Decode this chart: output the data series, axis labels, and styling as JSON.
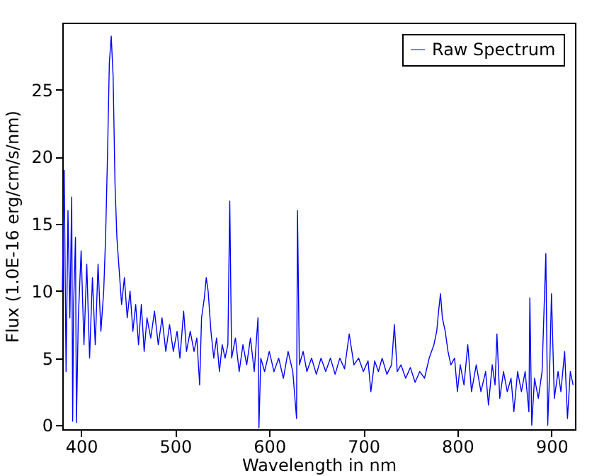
{
  "chart_data": {
    "type": "line",
    "xlabel": "Wavelength in nm",
    "ylabel": "Flux (1.0E-16 erg/cm/s/nm)",
    "x": [
      380,
      382,
      384,
      386,
      388,
      390,
      391,
      392,
      394,
      395,
      397,
      400,
      403,
      406,
      409,
      412,
      415,
      418,
      421,
      424,
      426,
      428,
      430,
      432,
      434,
      436,
      438,
      440,
      443,
      446,
      449,
      452,
      455,
      458,
      461,
      464,
      467,
      470,
      474,
      478,
      482,
      486,
      490,
      494,
      498,
      502,
      505,
      509,
      512,
      516,
      520,
      523,
      526,
      528,
      531,
      533,
      535,
      538,
      541,
      544,
      547,
      550,
      553,
      556,
      558,
      560,
      564,
      568,
      572,
      576,
      580,
      584,
      588,
      589,
      591,
      595,
      600,
      605,
      610,
      615,
      620,
      625,
      629,
      630,
      632,
      636,
      640,
      645,
      650,
      655,
      660,
      665,
      670,
      675,
      680,
      685,
      690,
      695,
      700,
      705,
      708,
      712,
      716,
      720,
      725,
      730,
      733,
      736,
      740,
      745,
      750,
      755,
      760,
      765,
      770,
      775,
      778,
      780,
      782,
      784,
      787,
      790,
      793,
      797,
      800,
      803,
      807,
      811,
      815,
      820,
      825,
      830,
      833,
      837,
      840,
      842,
      845,
      849,
      853,
      857,
      860,
      864,
      868,
      872,
      876,
      877,
      879,
      882,
      886,
      890,
      894,
      896,
      898,
      900,
      903,
      907,
      910,
      914,
      917,
      920,
      923
    ],
    "series": [
      {
        "name": "Raw Spectrum",
        "color": "#0000ff",
        "values": [
          10,
          19,
          4,
          16,
          8,
          17,
          0.3,
          9,
          14,
          0.2,
          8,
          13,
          6,
          12,
          5,
          11,
          6,
          12,
          7,
          10,
          14,
          20,
          27,
          29,
          26,
          18,
          14,
          12,
          9,
          11,
          8,
          10,
          7,
          9,
          6,
          9,
          5.5,
          8,
          6.5,
          8.5,
          6,
          8,
          5.5,
          7.5,
          5.5,
          7,
          5,
          8.5,
          5.5,
          7,
          5.5,
          6.5,
          3,
          8,
          9.5,
          11,
          10,
          7,
          5,
          6.5,
          4,
          6,
          5,
          6,
          16.7,
          5,
          6.5,
          4,
          6,
          4.5,
          6.5,
          4,
          8,
          -0.2,
          5,
          4,
          5.5,
          4,
          5,
          3.5,
          5.5,
          4,
          0.5,
          16,
          4.5,
          5.5,
          4,
          5,
          3.8,
          5,
          4,
          5,
          3.8,
          5,
          4.2,
          6.8,
          4.5,
          5,
          4,
          4.8,
          2.5,
          4.8,
          4,
          5,
          3.8,
          4.5,
          7.5,
          4,
          4.5,
          3.5,
          4.3,
          3.2,
          4,
          3.5,
          5,
          6,
          7,
          8.5,
          9.8,
          8,
          7,
          5.5,
          4.5,
          5,
          2.5,
          4.5,
          3,
          6,
          2.5,
          4.5,
          2.5,
          4,
          1.5,
          4.5,
          3,
          6.8,
          2,
          4,
          2.5,
          3.5,
          1,
          4,
          2.5,
          4,
          1,
          9.5,
          0,
          3.5,
          2,
          4,
          12.8,
          0,
          4,
          9.8,
          2,
          4,
          2.5,
          5.5,
          0.5,
          4,
          3
        ]
      }
    ],
    "xlim": [
      380,
      925
    ],
    "ylim": [
      -0.3,
      30
    ],
    "xticks": [
      400,
      500,
      600,
      700,
      800,
      900
    ],
    "yticks": [
      0,
      5,
      10,
      15,
      20,
      25
    ],
    "legend": "top right",
    "grid": false,
    "line_style": "solid"
  }
}
